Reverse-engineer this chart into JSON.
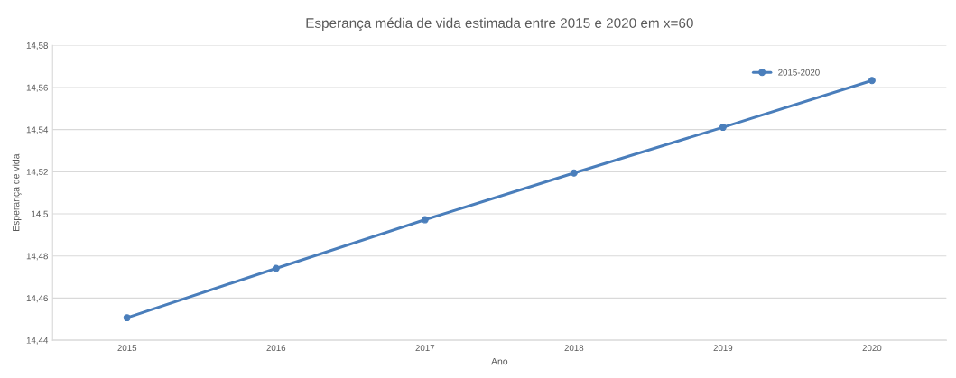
{
  "chart_data": {
    "type": "line",
    "title": "Esperança média de vida estimada entre 2015 e 2020 em x=60",
    "xlabel": "Ano",
    "ylabel": "Esperança de vida",
    "categories": [
      "2015",
      "2016",
      "2017",
      "2018",
      "2019",
      "2020"
    ],
    "series": [
      {
        "name": "2015-2020",
        "color": "#4a7ebb",
        "values": [
          14.4507,
          14.4741,
          14.4972,
          14.5194,
          14.5411,
          14.5633
        ]
      }
    ],
    "ylim": [
      14.44,
      14.58
    ],
    "yticks": [
      {
        "value": 14.44,
        "label": "14,44"
      },
      {
        "value": 14.46,
        "label": "14,46"
      },
      {
        "value": 14.48,
        "label": "14,48"
      },
      {
        "value": 14.5,
        "label": "14,5"
      },
      {
        "value": 14.52,
        "label": "14,52"
      },
      {
        "value": 14.54,
        "label": "14,54"
      },
      {
        "value": 14.56,
        "label": "14,56"
      },
      {
        "value": 14.58,
        "label": "14,58"
      }
    ],
    "grid": "y",
    "legend": "top right",
    "marker": "circle",
    "line_style": "solid"
  }
}
